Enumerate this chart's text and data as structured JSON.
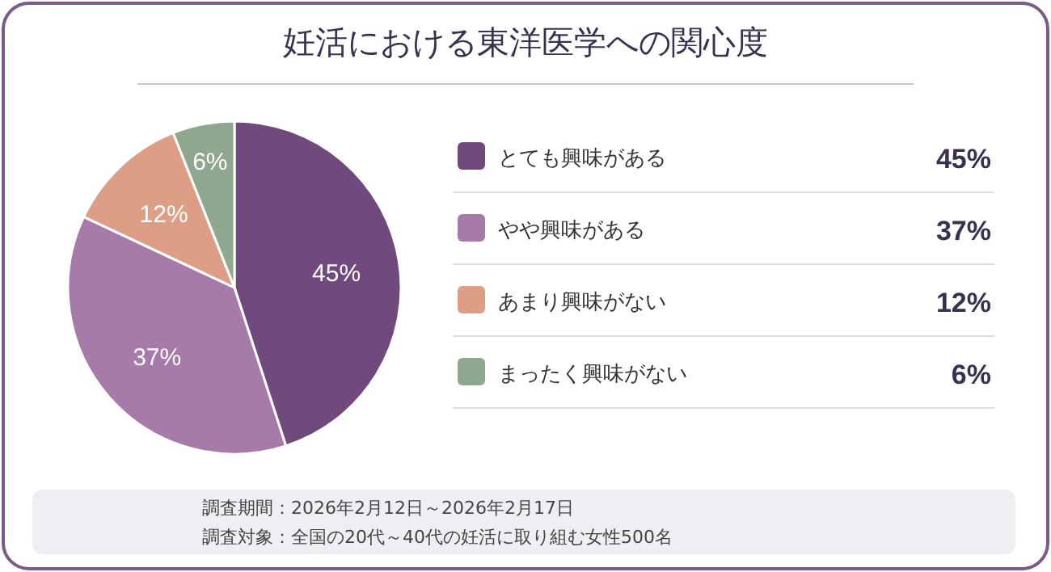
{
  "chart_data": {
    "type": "pie",
    "title": "妊活における東洋医学への関心度",
    "categories": [
      "とても興味がある",
      "やや興味がある",
      "あまり興味がない",
      "まったく興味がない"
    ],
    "values": [
      45,
      37,
      12,
      6
    ],
    "colors": [
      "#70497d",
      "#a67ba9",
      "#dc9f86",
      "#8fa68f"
    ],
    "value_labels": [
      "45%",
      "37%",
      "12%",
      "6%"
    ],
    "legend": "right",
    "annotations": [
      "調査期間：2026年2月12日～2026年2月17日",
      "調査対象：全国の20代～40代の妊活に取り組む女性500名"
    ]
  }
}
